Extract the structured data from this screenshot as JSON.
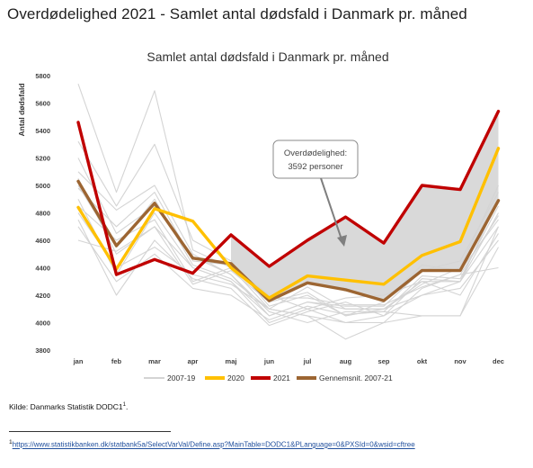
{
  "page": {
    "title": "Overdødelighed 2021 - Samlet antal dødsfald i Danmark pr. måned",
    "source_label": "Kilde: Danmarks Statistik DODC1",
    "source_sup": "1",
    "source_end": ".",
    "footnote_sup": "1",
    "footnote_link": "https://www.statistikbanken.dk/statbank5a/SelectVarVal/Define.asp?MainTable=DODC1&PLanguage=0&PXSId=0&wsid=cftree"
  },
  "colors": {
    "grey_lines": "#d4d4d4",
    "y2020": "#ffc000",
    "y2021": "#c00000",
    "avg": "#9c6532",
    "fill": "#d9d9d9",
    "axis_text": "#404040"
  },
  "chart_data": {
    "type": "line",
    "title": "Samlet antal dødsfald i Danmark pr. måned",
    "ylabel": "Antal dødsfald",
    "xlabel": "",
    "categories": [
      "jan",
      "feb",
      "mar",
      "apr",
      "maj",
      "jun",
      "jul",
      "aug",
      "sep",
      "okt",
      "nov",
      "dec"
    ],
    "ylim": [
      3800,
      5800
    ],
    "yticks": [
      3800,
      4000,
      4200,
      4400,
      4600,
      4800,
      5000,
      5200,
      5400,
      5600,
      5800
    ],
    "grid": false,
    "legend_position": "bottom",
    "background_lines": [
      [
        5740,
        4950,
        5690,
        4530,
        4400,
        4100,
        4050,
        3880,
        4000,
        4050,
        4050,
        4700
      ],
      [
        5320,
        4850,
        5300,
        4600,
        4450,
        4120,
        4200,
        4050,
        4100,
        4200,
        4300,
        4900
      ],
      [
        5100,
        4820,
        5000,
        4500,
        4350,
        4050,
        4150,
        4100,
        4100,
        4280,
        4400,
        5000
      ],
      [
        4900,
        4350,
        4800,
        4400,
        4300,
        4000,
        4100,
        4000,
        4000,
        4250,
        4350,
        4400
      ],
      [
        4750,
        4200,
        4600,
        4320,
        4250,
        3980,
        4080,
        4150,
        4050,
        4320,
        4300,
        4800
      ],
      [
        4600,
        4520,
        4700,
        4280,
        4380,
        4150,
        4220,
        4050,
        4150,
        4420,
        4380,
        4750
      ],
      [
        4980,
        4700,
        4950,
        4450,
        4420,
        4200,
        4100,
        4180,
        4200,
        4300,
        4200,
        4650
      ],
      [
        4800,
        4400,
        4550,
        4350,
        4280,
        4100,
        4050,
        4000,
        4050,
        4200,
        4250,
        4600
      ],
      [
        5200,
        4650,
        4850,
        4480,
        4350,
        4080,
        4000,
        4080,
        4080,
        4340,
        4320,
        4850
      ],
      [
        5050,
        4500,
        4700,
        4400,
        4300,
        4050,
        4150,
        4120,
        4120,
        4380,
        4450,
        4950
      ],
      [
        4700,
        4300,
        4500,
        4250,
        4200,
        4020,
        4120,
        4060,
        4080,
        4050,
        4050,
        4550
      ],
      [
        5000,
        4550,
        4900,
        4420,
        4320,
        4100,
        4260,
        4100,
        4100,
        4300,
        4300,
        4700
      ],
      [
        4850,
        4600,
        4750,
        4300,
        4400,
        4180,
        4180,
        4130,
        4130,
        4260,
        4350,
        4780
      ]
    ],
    "series": [
      {
        "name": "2007-19",
        "role": "grey"
      },
      {
        "name": "2020",
        "values": [
          4840,
          4390,
          4830,
          4740,
          4400,
          4180,
          4340,
          4310,
          4280,
          4490,
          4590,
          5270
        ]
      },
      {
        "name": "2021",
        "values": [
          5460,
          4350,
          4460,
          4360,
          4640,
          4410,
          4600,
          4770,
          4580,
          5000,
          4970,
          5540
        ]
      },
      {
        "name": "Gennemsnit. 2007-21",
        "values": [
          5030,
          4560,
          4870,
          4470,
          4430,
          4160,
          4290,
          4240,
          4160,
          4380,
          4380,
          4890
        ]
      }
    ],
    "annotation": {
      "line1": "Overdødelighed:",
      "line2": "3592 personer"
    }
  }
}
